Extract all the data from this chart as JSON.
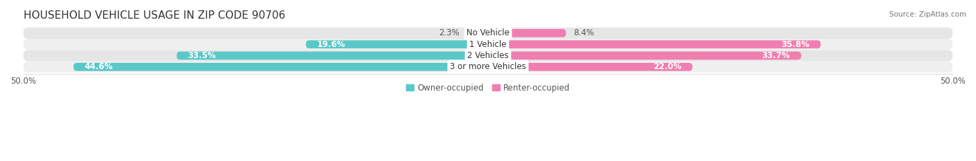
{
  "title": "HOUSEHOLD VEHICLE USAGE IN ZIP CODE 90706",
  "source": "Source: ZipAtlas.com",
  "categories": [
    "No Vehicle",
    "1 Vehicle",
    "2 Vehicles",
    "3 or more Vehicles"
  ],
  "owner_values": [
    2.3,
    19.6,
    33.5,
    44.6
  ],
  "renter_values": [
    8.4,
    35.8,
    33.7,
    22.0
  ],
  "owner_color": "#5BC8C8",
  "renter_color": "#F07EB0",
  "row_bg_colors": [
    "#F0F0F0",
    "#E6E6E6"
  ],
  "xlim": [
    -50,
    50
  ],
  "legend_owner": "Owner-occupied",
  "legend_renter": "Renter-occupied",
  "label_fontsize": 8.5,
  "title_fontsize": 11,
  "source_fontsize": 7.5,
  "bar_height": 0.72,
  "inside_label_threshold_owner": 15.0,
  "inside_label_threshold_renter": 15.0
}
